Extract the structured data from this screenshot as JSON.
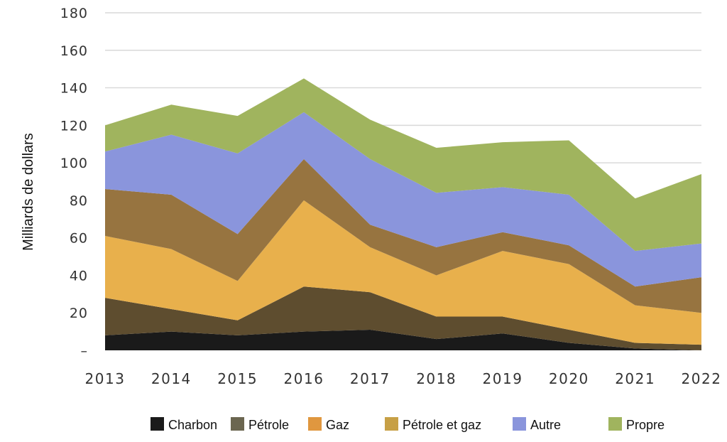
{
  "chart_data": {
    "type": "area",
    "stacked": true,
    "title": "",
    "xlabel": "",
    "ylabel": "Milliards de dollars",
    "ylim": [
      0,
      180
    ],
    "y_ticks": [
      "–",
      "20",
      "40",
      "60",
      "80",
      "100",
      "120",
      "140",
      "160",
      "180"
    ],
    "y_tick_values": [
      0,
      20,
      40,
      60,
      80,
      100,
      120,
      140,
      160,
      180
    ],
    "categories": [
      "2013",
      "2014",
      "2015",
      "2016",
      "2017",
      "2018",
      "2019",
      "2020",
      "2021",
      "2022"
    ],
    "grid": true,
    "legend_position": "bottom",
    "series": [
      {
        "name": "Charbon",
        "color": "#1a1a1a",
        "legend_color": "#1a1a1a",
        "values": [
          8,
          10,
          8,
          10,
          11,
          6,
          9,
          4,
          1,
          0
        ]
      },
      {
        "name": "Pétrole",
        "color": "#5e4d2f",
        "legend_color": "#6b6650",
        "values": [
          20,
          12,
          8,
          24,
          20,
          12,
          9,
          7,
          3,
          3
        ]
      },
      {
        "name": "Gaz",
        "color": "#e8b04c",
        "legend_color": "#e0973f",
        "values": [
          33,
          32,
          21,
          46,
          24,
          22,
          35,
          35,
          20,
          17
        ]
      },
      {
        "name": "Pétrole et gaz",
        "color": "#977440",
        "legend_color": "#c7a046",
        "values": [
          25,
          29,
          25,
          22,
          12,
          15,
          10,
          10,
          10,
          19
        ]
      },
      {
        "name": "Autre",
        "color": "#8a95dc",
        "legend_color": "#8a95dc",
        "values": [
          20,
          32,
          43,
          25,
          35,
          29,
          24,
          27,
          19,
          18
        ]
      },
      {
        "name": "Propre",
        "color": "#a0b45e",
        "legend_color": "#a0b45e",
        "values": [
          14,
          16,
          20,
          18,
          21,
          24,
          24,
          29,
          28,
          37
        ]
      }
    ]
  }
}
